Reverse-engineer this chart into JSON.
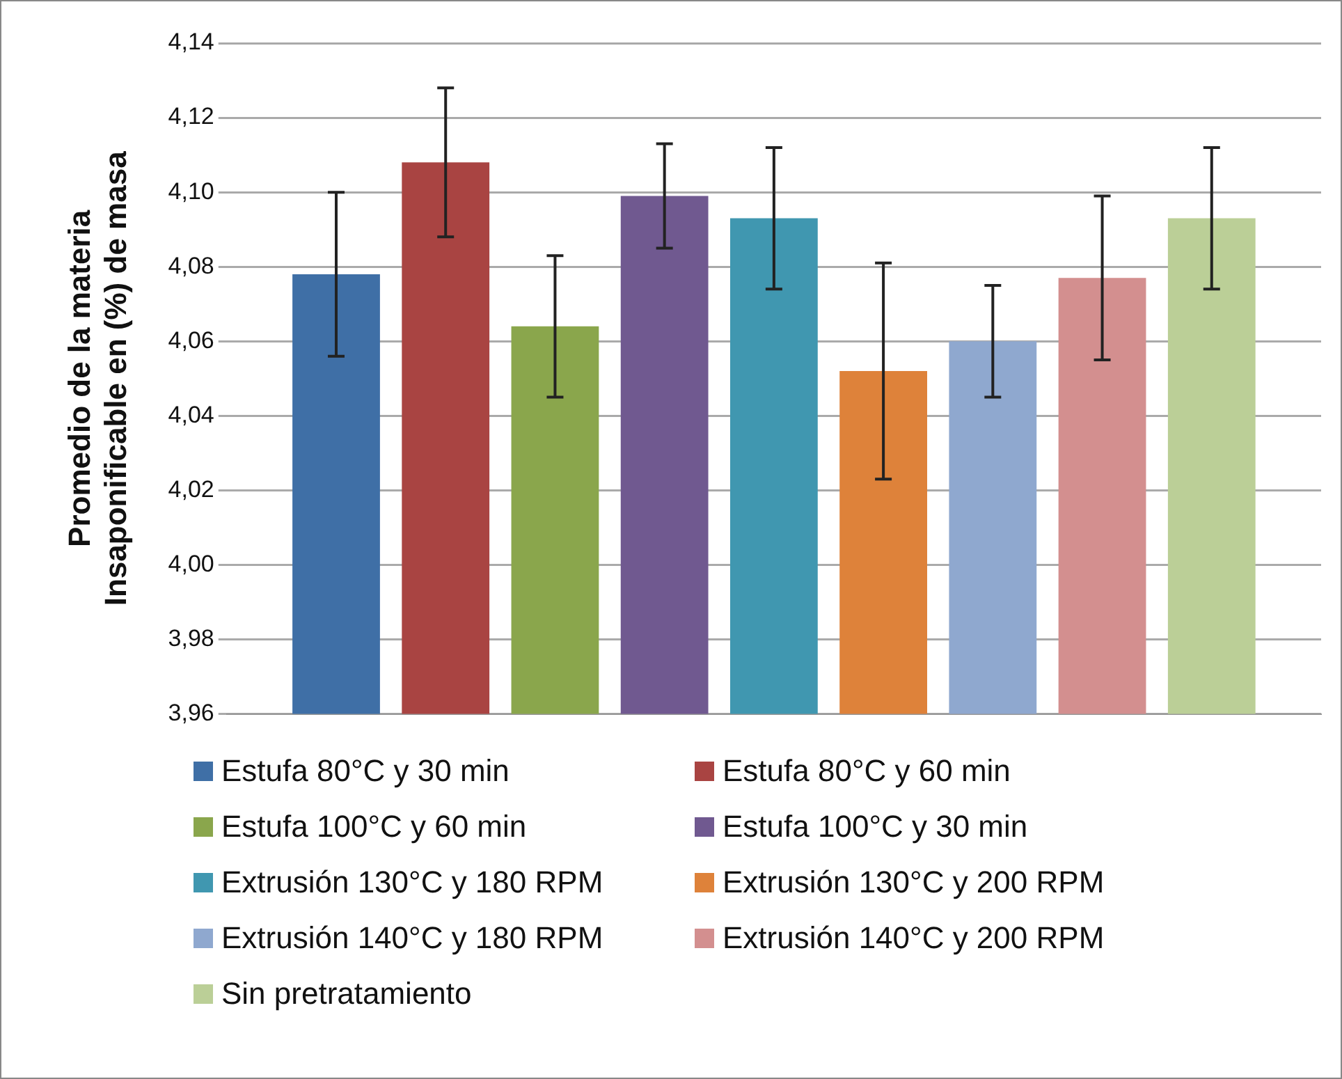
{
  "chart_data": {
    "type": "bar",
    "ylabel": "Promedio de la materia Insaponificable en (%) de masa",
    "categories": [
      null
    ],
    "series": [
      {
        "name": "Estufa 80°C y 30 min",
        "color": "#3f6fa6",
        "values": [
          4.078
        ],
        "errors": [
          0.022
        ]
      },
      {
        "name": "Estufa 80°C y 60 min",
        "color": "#a94442",
        "values": [
          4.108
        ],
        "errors": [
          0.02
        ]
      },
      {
        "name": "Estufa 100°C y 60 min",
        "color": "#8aa64c",
        "values": [
          4.064
        ],
        "errors": [
          0.019
        ]
      },
      {
        "name": "Estufa 100°C y 30 min",
        "color": "#705990",
        "values": [
          4.099
        ],
        "errors": [
          0.014
        ]
      },
      {
        "name": "Extrusión 130°C y 180 RPM",
        "color": "#4097b0",
        "values": [
          4.093
        ],
        "errors": [
          0.019
        ]
      },
      {
        "name": "Extrusión 130°C y 200 RPM",
        "color": "#de823a",
        "values": [
          4.052
        ],
        "errors": [
          0.029
        ]
      },
      {
        "name": "Extrusión 140°C y 180 RPM",
        "color": "#8fa8cf",
        "values": [
          4.06
        ],
        "errors": [
          0.015
        ]
      },
      {
        "name": "Extrusión 140°C y 200 RPM",
        "color": "#d38f8f",
        "values": [
          4.077
        ],
        "errors": [
          0.022
        ]
      },
      {
        "name": "Sin pretratamiento",
        "color": "#bbcf97",
        "values": [
          4.093
        ],
        "errors": [
          0.019
        ]
      }
    ],
    "ylim": [
      3.96,
      4.14
    ],
    "yticks": [
      {
        "value": 3.96,
        "label": "3,96"
      },
      {
        "value": 3.98,
        "label": "3,98"
      },
      {
        "value": 4.0,
        "label": "4,00"
      },
      {
        "value": 4.02,
        "label": "4,02"
      },
      {
        "value": 4.04,
        "label": "4,04"
      },
      {
        "value": 4.06,
        "label": "4,06"
      },
      {
        "value": 4.08,
        "label": "4,08"
      },
      {
        "value": 4.1,
        "label": "4,10"
      },
      {
        "value": 4.12,
        "label": "4,12"
      },
      {
        "value": 4.14,
        "label": "4,14"
      }
    ],
    "grid": "y",
    "legend": "bottom"
  }
}
